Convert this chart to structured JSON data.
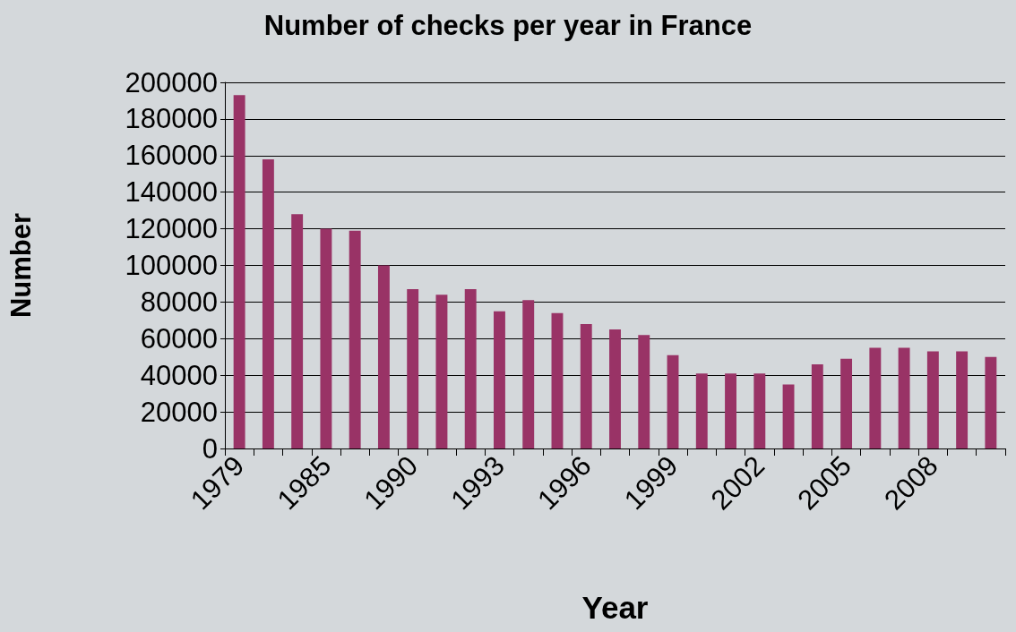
{
  "chart_data": {
    "type": "bar",
    "title": "Number of checks per year in France",
    "xlabel": "Year",
    "ylabel": "Number",
    "categories": [
      "1979",
      null,
      null,
      "1985",
      null,
      null,
      "1990",
      null,
      null,
      "1993",
      null,
      null,
      "1996",
      null,
      null,
      "1999",
      null,
      null,
      "2002",
      null,
      null,
      "2005",
      null,
      null,
      "2008",
      null,
      null
    ],
    "values": [
      193000,
      158000,
      128000,
      120000,
      119000,
      100000,
      87000,
      84000,
      87000,
      75000,
      81000,
      74000,
      68000,
      65000,
      62000,
      51000,
      41000,
      41000,
      41000,
      35000,
      46000,
      49000,
      55000,
      55000,
      53000,
      53000,
      50000
    ],
    "color": "#993366",
    "ylim": [
      0,
      200000
    ],
    "yticks": [
      0,
      20000,
      40000,
      60000,
      80000,
      100000,
      120000,
      140000,
      160000,
      180000,
      200000
    ],
    "grid": "y"
  }
}
